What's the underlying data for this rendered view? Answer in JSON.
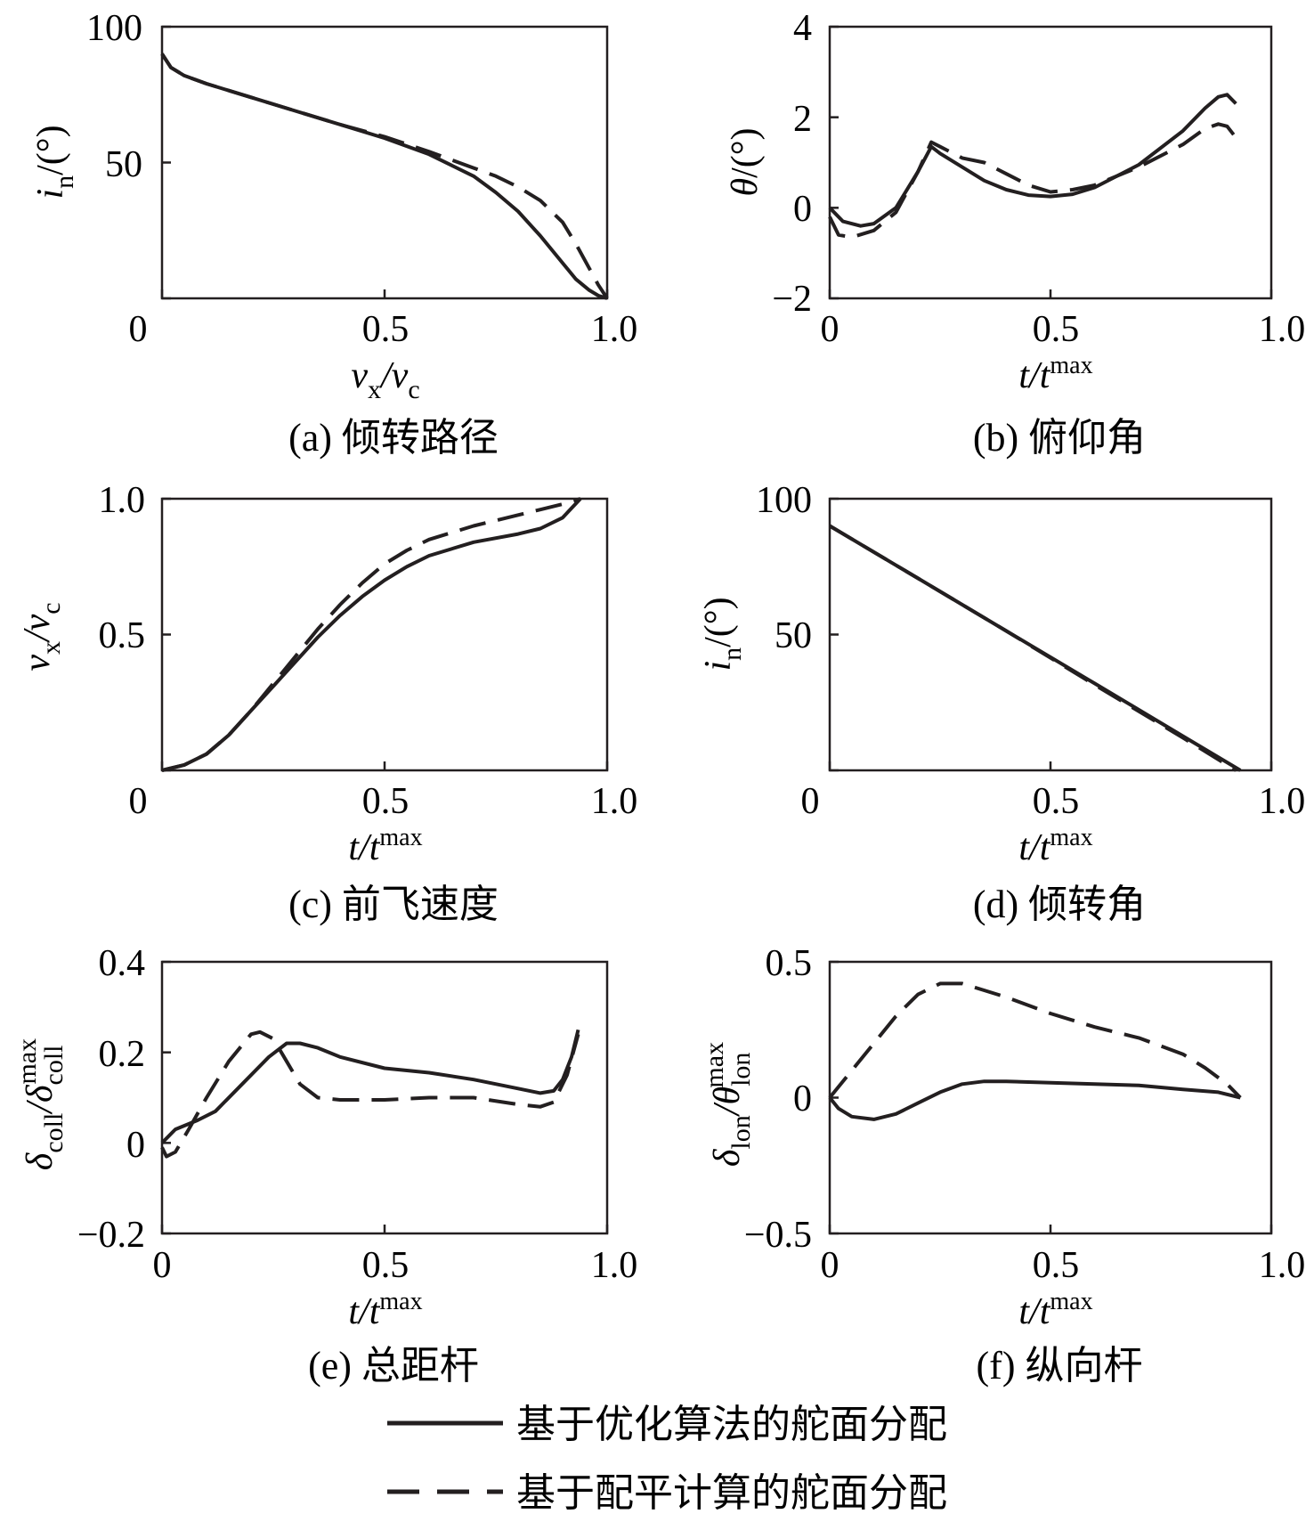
{
  "legend": [
    {
      "label": "基于优化算法的舵面分配",
      "style": "solid"
    },
    {
      "label": "基于配平计算的舵面分配",
      "style": "dashed"
    }
  ],
  "line_color": "#231f20",
  "chart_data": [
    {
      "type": "line",
      "caption": "(a) 倾转路径",
      "xlabel": "v_x/v_c",
      "ylabel": "i_n/(°)",
      "xlim": [
        0,
        1.0
      ],
      "ylim": [
        0,
        100
      ],
      "xticks": [
        "0",
        "0.5",
        "1.0"
      ],
      "yticks": [
        "50",
        "100"
      ],
      "series": [
        {
          "style": "solid",
          "x": [
            0,
            0.02,
            0.05,
            0.1,
            0.2,
            0.3,
            0.4,
            0.5,
            0.6,
            0.7,
            0.75,
            0.8,
            0.85,
            0.9,
            0.93,
            0.96,
            0.98,
            1.0
          ],
          "y": [
            90,
            85,
            82,
            79,
            74,
            69,
            64,
            59,
            53,
            45,
            39,
            32,
            23,
            13,
            7,
            3,
            1,
            0
          ]
        },
        {
          "style": "dashed",
          "x": [
            0,
            0.02,
            0.05,
            0.1,
            0.2,
            0.3,
            0.4,
            0.5,
            0.6,
            0.7,
            0.75,
            0.8,
            0.85,
            0.9,
            0.93,
            0.96,
            0.98,
            1.0
          ],
          "y": [
            90,
            85,
            82,
            79,
            74,
            69,
            64,
            59.5,
            54,
            48,
            45,
            41,
            36,
            28,
            20,
            11,
            5,
            0
          ]
        }
      ]
    },
    {
      "type": "line",
      "caption": "(b) 俯仰角",
      "xlabel": "t/t^max",
      "ylabel": "θ/(°)",
      "xlim": [
        0,
        1.0
      ],
      "ylim": [
        -2,
        4
      ],
      "xticks": [
        "0",
        "0.5",
        "1.0"
      ],
      "yticks": [
        "−2",
        "0",
        "2",
        "4"
      ],
      "series": [
        {
          "style": "solid",
          "x": [
            0,
            0.03,
            0.07,
            0.1,
            0.15,
            0.2,
            0.23,
            0.25,
            0.3,
            0.35,
            0.4,
            0.45,
            0.5,
            0.55,
            0.6,
            0.7,
            0.8,
            0.85,
            0.88,
            0.9,
            0.92
          ],
          "y": [
            0,
            -0.3,
            -0.4,
            -0.35,
            0,
            0.8,
            1.35,
            1.2,
            0.9,
            0.6,
            0.4,
            0.28,
            0.25,
            0.3,
            0.45,
            0.95,
            1.7,
            2.2,
            2.45,
            2.5,
            2.3
          ]
        },
        {
          "style": "dashed",
          "x": [
            0,
            0.02,
            0.05,
            0.1,
            0.15,
            0.2,
            0.23,
            0.25,
            0.3,
            0.35,
            0.4,
            0.45,
            0.5,
            0.55,
            0.6,
            0.7,
            0.8,
            0.85,
            0.88,
            0.9,
            0.92
          ],
          "y": [
            -0.2,
            -0.6,
            -0.65,
            -0.5,
            -0.1,
            0.8,
            1.45,
            1.35,
            1.1,
            1.0,
            0.75,
            0.5,
            0.35,
            0.4,
            0.5,
            0.9,
            1.4,
            1.75,
            1.85,
            1.8,
            1.55
          ]
        }
      ]
    },
    {
      "type": "line",
      "caption": "(c) 前飞速度",
      "xlabel": "t/t^max",
      "ylabel": "v_x/v_c",
      "xlim": [
        0,
        1.0
      ],
      "ylim": [
        0,
        1.0
      ],
      "xticks": [
        "0",
        "0.5",
        "1.0"
      ],
      "yticks": [
        "0.5",
        "1.0"
      ],
      "series": [
        {
          "style": "solid",
          "x": [
            0,
            0.05,
            0.1,
            0.15,
            0.2,
            0.25,
            0.3,
            0.35,
            0.4,
            0.45,
            0.5,
            0.55,
            0.6,
            0.7,
            0.8,
            0.85,
            0.9,
            0.94
          ],
          "y": [
            0,
            0.02,
            0.06,
            0.13,
            0.22,
            0.31,
            0.4,
            0.49,
            0.57,
            0.64,
            0.7,
            0.75,
            0.79,
            0.84,
            0.87,
            0.89,
            0.93,
            1.0
          ]
        },
        {
          "style": "dashed",
          "x": [
            0,
            0.05,
            0.1,
            0.15,
            0.2,
            0.25,
            0.3,
            0.35,
            0.4,
            0.45,
            0.5,
            0.55,
            0.6,
            0.7,
            0.8,
            0.85,
            0.9,
            0.94
          ],
          "y": [
            0,
            0.02,
            0.06,
            0.13,
            0.22,
            0.32,
            0.42,
            0.52,
            0.61,
            0.69,
            0.76,
            0.81,
            0.85,
            0.9,
            0.94,
            0.96,
            0.98,
            1.0
          ]
        }
      ]
    },
    {
      "type": "line",
      "caption": "(d) 倾转角",
      "xlabel": "t/t^max",
      "ylabel": "i_n/(°)",
      "xlim": [
        0,
        1.0
      ],
      "ylim": [
        0,
        100
      ],
      "xticks": [
        "0",
        "0.5",
        "1.0"
      ],
      "yticks": [
        "50",
        "100"
      ],
      "series": [
        {
          "style": "solid",
          "x": [
            0,
            0.2,
            0.4,
            0.6,
            0.8,
            0.93
          ],
          "y": [
            90,
            70.7,
            51.3,
            32,
            12.6,
            0
          ]
        },
        {
          "style": "dashed",
          "x": [
            0,
            0.2,
            0.4,
            0.6,
            0.8,
            0.92
          ],
          "y": [
            90,
            70.7,
            51.3,
            31.5,
            12,
            0
          ]
        }
      ]
    },
    {
      "type": "line",
      "caption": "(e) 总距杆",
      "xlabel": "t/t^max",
      "ylabel": "δ_coll/δ_coll^max",
      "xlim": [
        0,
        1.0
      ],
      "ylim": [
        -0.2,
        0.4
      ],
      "xticks": [
        "0",
        "0.5",
        "1.0"
      ],
      "yticks": [
        "−0.2",
        "0",
        "0.2",
        "0.4"
      ],
      "series": [
        {
          "style": "solid",
          "x": [
            0,
            0.03,
            0.08,
            0.12,
            0.18,
            0.24,
            0.28,
            0.31,
            0.35,
            0.4,
            0.5,
            0.6,
            0.7,
            0.8,
            0.85,
            0.88,
            0.9,
            0.92,
            0.935
          ],
          "y": [
            0,
            0.03,
            0.05,
            0.07,
            0.13,
            0.19,
            0.22,
            0.22,
            0.21,
            0.19,
            0.165,
            0.155,
            0.14,
            0.12,
            0.11,
            0.115,
            0.14,
            0.19,
            0.25
          ]
        },
        {
          "style": "dashed",
          "x": [
            0,
            0.01,
            0.03,
            0.06,
            0.1,
            0.15,
            0.2,
            0.22,
            0.25,
            0.28,
            0.31,
            0.35,
            0.4,
            0.5,
            0.6,
            0.7,
            0.8,
            0.85,
            0.88,
            0.91,
            0.935
          ],
          "y": [
            -0.01,
            -0.03,
            -0.02,
            0.03,
            0.1,
            0.18,
            0.24,
            0.245,
            0.23,
            0.18,
            0.13,
            0.1,
            0.095,
            0.095,
            0.1,
            0.1,
            0.085,
            0.08,
            0.09,
            0.15,
            0.24
          ]
        }
      ]
    },
    {
      "type": "line",
      "caption": "(f) 纵向杆",
      "xlabel": "t/t^max",
      "ylabel": "δ_lon/θ_lon^max",
      "xlim": [
        0,
        1.0
      ],
      "ylim": [
        -0.5,
        0.5
      ],
      "xticks": [
        "0",
        "0.5",
        "1.0"
      ],
      "yticks": [
        "−0.5",
        "0",
        "0.5"
      ],
      "series": [
        {
          "style": "solid",
          "x": [
            0,
            0.02,
            0.05,
            0.1,
            0.15,
            0.2,
            0.25,
            0.3,
            0.35,
            0.4,
            0.5,
            0.6,
            0.7,
            0.8,
            0.88,
            0.93
          ],
          "y": [
            0,
            -0.04,
            -0.07,
            -0.08,
            -0.06,
            -0.02,
            0.02,
            0.05,
            0.06,
            0.06,
            0.055,
            0.05,
            0.045,
            0.03,
            0.02,
            0
          ]
        },
        {
          "style": "dashed",
          "x": [
            0,
            0.05,
            0.1,
            0.15,
            0.2,
            0.25,
            0.3,
            0.4,
            0.5,
            0.6,
            0.7,
            0.8,
            0.85,
            0.9,
            0.93
          ],
          "y": [
            0,
            0.1,
            0.2,
            0.3,
            0.38,
            0.42,
            0.42,
            0.37,
            0.31,
            0.26,
            0.22,
            0.16,
            0.11,
            0.05,
            0
          ]
        }
      ]
    }
  ]
}
